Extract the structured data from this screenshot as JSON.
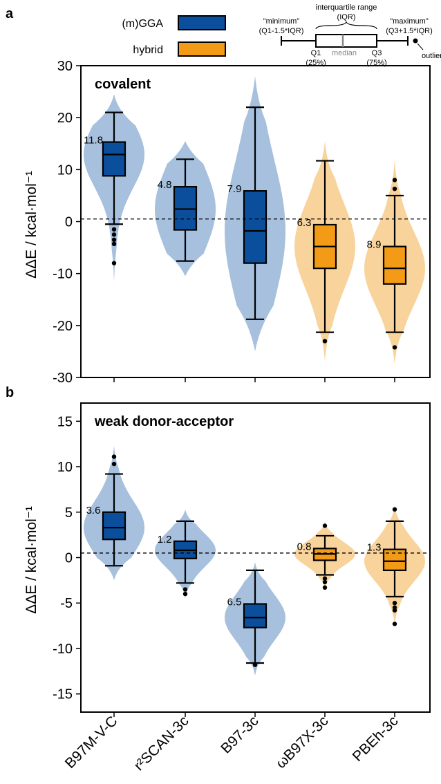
{
  "legend": {
    "items": [
      {
        "label": "(m)GGA",
        "color": "#0b4f9c"
      },
      {
        "label": "hybrid",
        "color": "#f39a17"
      }
    ]
  },
  "key": {
    "iqr_title": "interquartile range",
    "iqr_abbr": "(IQR)",
    "minimum_title": "\"minimum\"",
    "minimum_formula": "(Q1-1.5*IQR)",
    "maximum_title": "\"maximum\"",
    "maximum_formula": "(Q3+1.5*IQR)",
    "q1_label": "Q1",
    "q1_pct": "(25%)",
    "median_label": "median",
    "q3_label": "Q3",
    "q3_pct": "(75%)",
    "outliers_label": "outliers"
  },
  "colors": {
    "mgga_box": "#0b4f9c",
    "mgga_violin": "#a6c0dd",
    "hybrid_box": "#f39a17",
    "hybrid_violin": "#f8d39c"
  },
  "chart_data": [
    {
      "type": "box",
      "panel_letter": "a",
      "title": "covalent",
      "ylabel": "ΔΔE / kcal·mol⁻¹",
      "ylim": [
        -30,
        30
      ],
      "yticks": [
        30,
        20,
        10,
        0,
        -10,
        -20,
        -30
      ],
      "reference_line_y": 0.5,
      "categories": [
        "B97M-V-C",
        "r²SCAN-3c",
        "B97-3c",
        "ωB97X-3c",
        "PBEh-3c"
      ],
      "series": [
        {
          "category": "B97M-V-C",
          "group": "(m)GGA",
          "min": -0.5,
          "q1": 8.8,
          "median": 12.9,
          "q3": 15.3,
          "max": 21.0,
          "outliers": [
            -1.5,
            -2.5,
            -3.5,
            -4.3,
            -8.0
          ],
          "violin_range": [
            -11.5,
            24.5
          ],
          "label": "11.8"
        },
        {
          "category": "r²SCAN-3c",
          "group": "(m)GGA",
          "min": -7.6,
          "q1": -1.6,
          "median": 2.4,
          "q3": 6.7,
          "max": 12.0,
          "outliers": [],
          "violin_range": [
            -10.5,
            15.5
          ],
          "label": "4.8"
        },
        {
          "category": "B97-3c",
          "group": "(m)GGA",
          "min": -18.8,
          "q1": -8.0,
          "median": -1.8,
          "q3": 5.9,
          "max": 22.0,
          "outliers": [],
          "violin_range": [
            -25.0,
            28.0
          ],
          "label": "7.9"
        },
        {
          "category": "ωB97X-3c",
          "group": "hybrid",
          "min": -21.3,
          "q1": -9.0,
          "median": -4.8,
          "q3": -0.6,
          "max": 11.7,
          "outliers": [
            -23.0
          ],
          "violin_range": [
            -27.0,
            15.5
          ],
          "label": "6.3"
        },
        {
          "category": "PBEh-3c",
          "group": "hybrid",
          "min": -21.3,
          "q1": -12.0,
          "median": -9.0,
          "q3": -4.8,
          "max": 5.0,
          "outliers": [
            6.3,
            8.0,
            -24.2
          ],
          "violin_range": [
            -27.5,
            12.0
          ],
          "label": "8.9"
        }
      ]
    },
    {
      "type": "box",
      "panel_letter": "b",
      "title": "weak donor-acceptor",
      "ylabel": "ΔΔE / kcal·mol⁻¹",
      "ylim": [
        -17,
        17
      ],
      "yticks": [
        15,
        10,
        5,
        0,
        -5,
        -10,
        -15
      ],
      "reference_line_y": 0.5,
      "categories": [
        "B97M-V-C",
        "r²SCAN-3c",
        "B97-3c",
        "ωB97X-3c",
        "PBEh-3c"
      ],
      "series": [
        {
          "category": "B97M-V-C",
          "group": "(m)GGA",
          "min": -0.9,
          "q1": 2.0,
          "median": 3.3,
          "q3": 5.0,
          "max": 9.2,
          "outliers": [
            10.3,
            11.1
          ],
          "violin_range": [
            -2.5,
            12.3
          ],
          "label": "3.6"
        },
        {
          "category": "r²SCAN-3c",
          "group": "(m)GGA",
          "min": -2.8,
          "q1": -0.1,
          "median": 0.8,
          "q3": 1.8,
          "max": 4.0,
          "outliers": [
            -3.5,
            -4.0
          ],
          "violin_range": [
            -4.5,
            5.3
          ],
          "label": "1.2"
        },
        {
          "category": "B97-3c",
          "group": "(m)GGA",
          "min": -11.6,
          "q1": -7.7,
          "median": -6.6,
          "q3": -5.1,
          "max": -1.4,
          "outliers": [
            -11.8
          ],
          "violin_range": [
            -13.0,
            -0.5
          ],
          "label": "6.5"
        },
        {
          "category": "ωB97X-3c",
          "group": "hybrid",
          "min": -1.9,
          "q1": -0.3,
          "median": 0.4,
          "q3": 1.0,
          "max": 2.4,
          "outliers": [
            3.5,
            -2.3,
            -2.7,
            -3.3
          ],
          "violin_range": [
            -3.5,
            4.0
          ],
          "label": "0.8"
        },
        {
          "category": "PBEh-3c",
          "group": "hybrid",
          "min": -4.3,
          "q1": -1.4,
          "median": -0.4,
          "q3": 0.9,
          "max": 4.0,
          "outliers": [
            5.3,
            -5.0,
            -5.5,
            -5.8,
            -7.3
          ],
          "violin_range": [
            -7.5,
            5.8
          ],
          "label": "1.3"
        }
      ]
    }
  ]
}
